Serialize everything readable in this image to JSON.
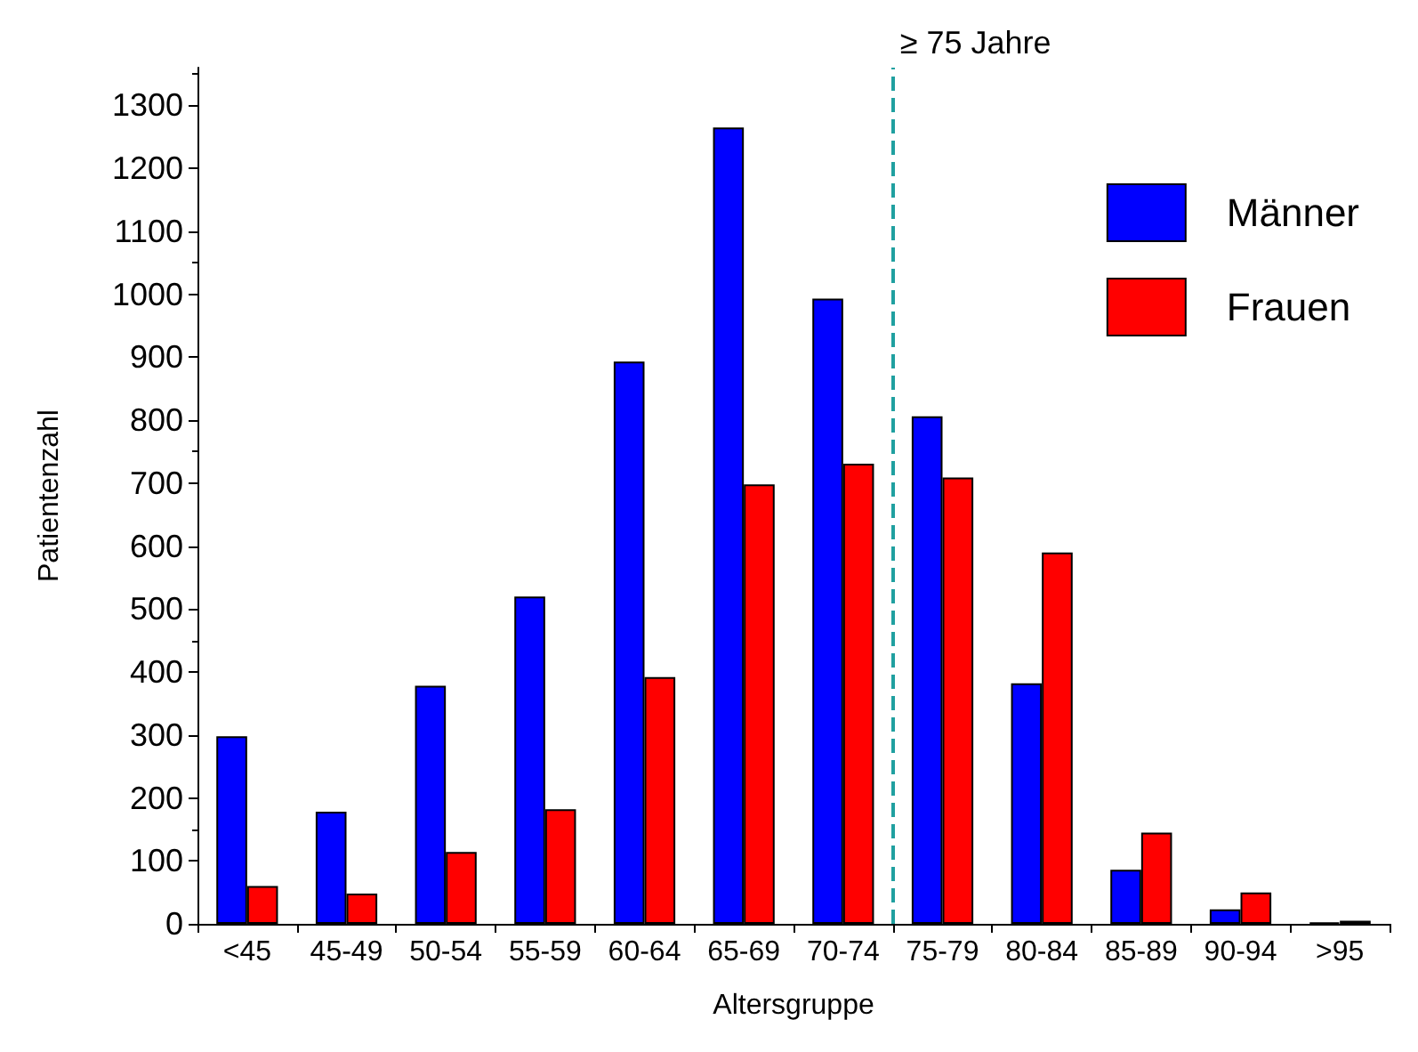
{
  "chart_data": {
    "type": "bar",
    "xlabel": "Altersgruppe",
    "ylabel": "Patientenzahl",
    "categories": [
      "<45",
      "45-49",
      "50-54",
      "55-59",
      "60-64",
      "65-69",
      "70-74",
      "75-79",
      "80-84",
      "85-89",
      "90-94",
      ">95"
    ],
    "series": [
      {
        "name": "Männer",
        "color": "#0000ff",
        "values": [
          298,
          178,
          378,
          520,
          893,
          1265,
          993,
          806,
          382,
          86,
          23,
          2
        ]
      },
      {
        "name": "Frauen",
        "color": "#ff0000",
        "values": [
          60,
          48,
          114,
          182,
          392,
          698,
          731,
          709,
          590,
          145,
          50,
          5
        ]
      }
    ],
    "ylim": [
      0,
      1360
    ],
    "yticks": [
      0,
      100,
      200,
      300,
      400,
      500,
      600,
      700,
      800,
      900,
      1000,
      1100,
      1200,
      1300
    ],
    "ref_lines": [
      {
        "axis": "x",
        "value": "75-79",
        "label": "≥ 75 Jahre",
        "color": "#20a0a0",
        "line_style": "dashed"
      }
    ],
    "grid": false,
    "legend": "right"
  }
}
